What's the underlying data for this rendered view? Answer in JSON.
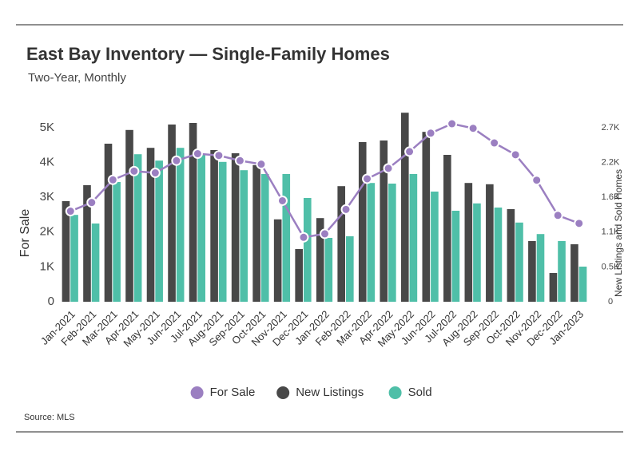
{
  "chart_data": {
    "type": "combo",
    "title": "East Bay Inventory — Single-Family Homes",
    "subtitle": "Two-Year, Monthly",
    "y_label": "For Sale",
    "y2_label": "New Listings and Sold Homes",
    "source": "Source: MLS",
    "categories": [
      "Jan-2021",
      "Feb-2021",
      "Mar-2021",
      "Apr-2021",
      "May-2021",
      "Jun-2021",
      "Jul-2021",
      "Aug-2021",
      "Sep-2021",
      "Oct-2021",
      "Nov-2021",
      "Dec-2021",
      "Jan-2022",
      "Feb-2022",
      "Mar-2022",
      "Apr-2022",
      "May-2022",
      "Jun-2022",
      "Jul-2022",
      "Aug-2022",
      "Sep-2022",
      "Oct-2022",
      "Nov-2022",
      "Dec-2022",
      "Jan-2023"
    ],
    "series": [
      {
        "name": "For Sale",
        "type": "line",
        "axis": "y",
        "color": "#9b7fc1",
        "values": [
          2600,
          2850,
          3500,
          3750,
          3700,
          4050,
          4250,
          4200,
          4050,
          3950,
          2900,
          1850,
          1950,
          2650,
          3530,
          3830,
          4310,
          4840,
          5110,
          4980,
          4560,
          4220,
          3490,
          2480,
          2250
        ]
      },
      {
        "name": "New Listings",
        "type": "bar",
        "axis": "y2",
        "color": "#484848",
        "values": [
          1575,
          1825,
          2475,
          2690,
          2410,
          2775,
          2800,
          2375,
          2325,
          2140,
          1290,
          825,
          1310,
          1810,
          2500,
          2525,
          2960,
          2660,
          2300,
          1860,
          1840,
          1450,
          950,
          450,
          900
        ]
      },
      {
        "name": "Sold",
        "type": "bar",
        "axis": "y2",
        "color": "#4fbfa8",
        "values": [
          1360,
          1225,
          1875,
          2310,
          2210,
          2410,
          2310,
          2190,
          2060,
          2000,
          2000,
          1625,
          1000,
          1025,
          1860,
          1850,
          2000,
          1725,
          1425,
          1540,
          1475,
          1240,
          1060,
          950,
          550
        ]
      }
    ],
    "ylim": [
      0,
      5500
    ],
    "yticks": [
      0,
      {
        "value": 1000,
        "label": "1K"
      },
      {
        "value": 2000,
        "label": "2K"
      },
      {
        "value": 3000,
        "label": "3K"
      },
      {
        "value": 4000,
        "label": "4K"
      },
      {
        "value": 5000,
        "label": "5K"
      }
    ],
    "y2lim": [
      0,
      3000
    ],
    "y2ticks": [
      0,
      {
        "value": 545,
        "label": "0.5K"
      },
      {
        "value": 1090,
        "label": "1.1K"
      },
      {
        "value": 1635,
        "label": "1.6K"
      },
      {
        "value": 2180,
        "label": "2.2K"
      },
      {
        "value": 2725,
        "label": "2.7K"
      }
    ],
    "grid": false
  }
}
